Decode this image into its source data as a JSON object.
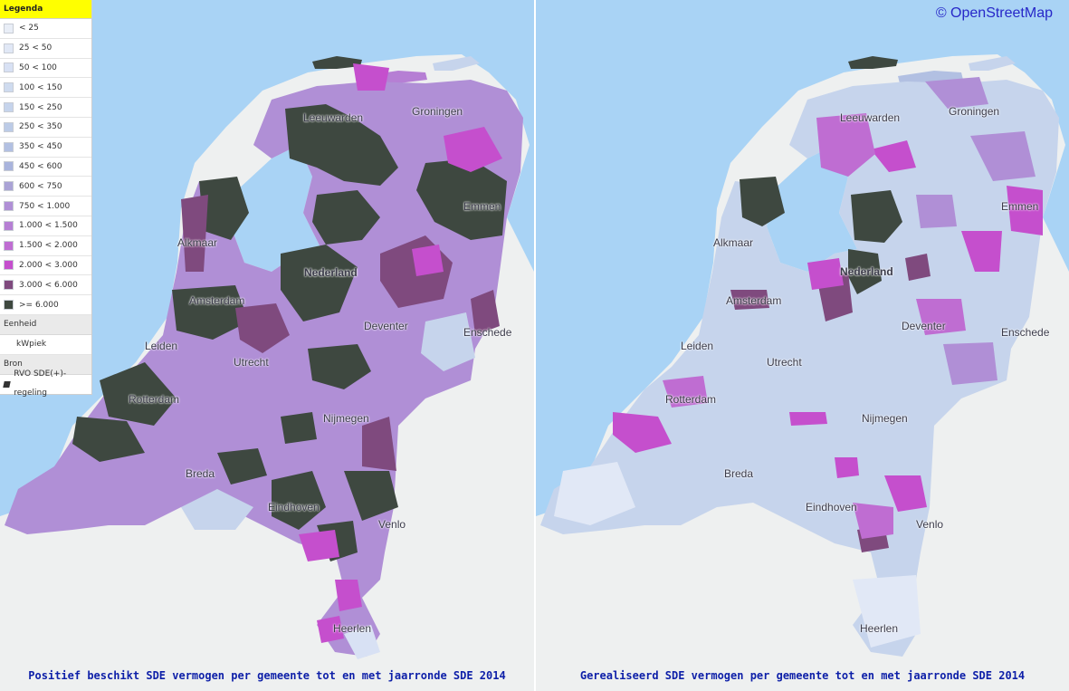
{
  "legend": {
    "title": "Legenda",
    "classes": [
      {
        "label": "< 25",
        "color": "#e9eef7"
      },
      {
        "label": "25 < 50",
        "color": "#e1e8f6"
      },
      {
        "label": "50 < 100",
        "color": "#d8e1f4"
      },
      {
        "label": "100 < 150",
        "color": "#cfdbef"
      },
      {
        "label": "150 < 250",
        "color": "#c6d4ec"
      },
      {
        "label": "250 < 350",
        "color": "#bccbe7"
      },
      {
        "label": "350 < 450",
        "color": "#b2c0e2"
      },
      {
        "label": "450 < 600",
        "color": "#a9b4dd"
      },
      {
        "label": "600 < 750",
        "color": "#aaa3d6"
      },
      {
        "label": "750 < 1.000",
        "color": "#b08fd6"
      },
      {
        "label": "1.000 < 1.500",
        "color": "#b67fd4"
      },
      {
        "label": "1.500 < 2.000",
        "color": "#bf6dd2"
      },
      {
        "label": "2.000 < 3.000",
        "color": "#c54fcd"
      },
      {
        "label": "3.000 < 6.000",
        "color": "#7f4a7e"
      },
      {
        "label": ">= 6.000",
        "color": "#3e4840"
      }
    ],
    "unit_heading": "Eenheid",
    "unit": "kWpiek",
    "source_heading": "Bron",
    "source": "RVO SDE(+)-regeling"
  },
  "attribution": "© OpenStreetMap",
  "left_map": {
    "caption": "Positief beschikt SDE vermogen per gemeente tot en met jaarronde SDE 2014",
    "cities": [
      "Leeuwarden",
      "Groningen",
      "Emmen",
      "Alkmaar",
      "Nederland",
      "Amsterdam",
      "Leiden",
      "Deventer",
      "Enschede",
      "Utrecht",
      "Rotterdam",
      "Nijmegen",
      "Breda",
      "Eindhoven",
      "Venlo",
      "Heerlen"
    ]
  },
  "right_map": {
    "caption": "Gerealiseerd SDE vermogen per gemeente tot en met jaarronde SDE 2014",
    "cities": [
      "Leeuwarden",
      "Groningen",
      "Emmen",
      "Alkmaar",
      "Nederland",
      "Amsterdam",
      "Leiden",
      "Deventer",
      "Enschede",
      "Utrecht",
      "Rotterdam",
      "Nijmegen",
      "Breda",
      "Eindhoven",
      "Venlo",
      "Heerlen"
    ]
  },
  "colors": {
    "sea": "#a9d3f5",
    "land": "#eef0f0"
  }
}
